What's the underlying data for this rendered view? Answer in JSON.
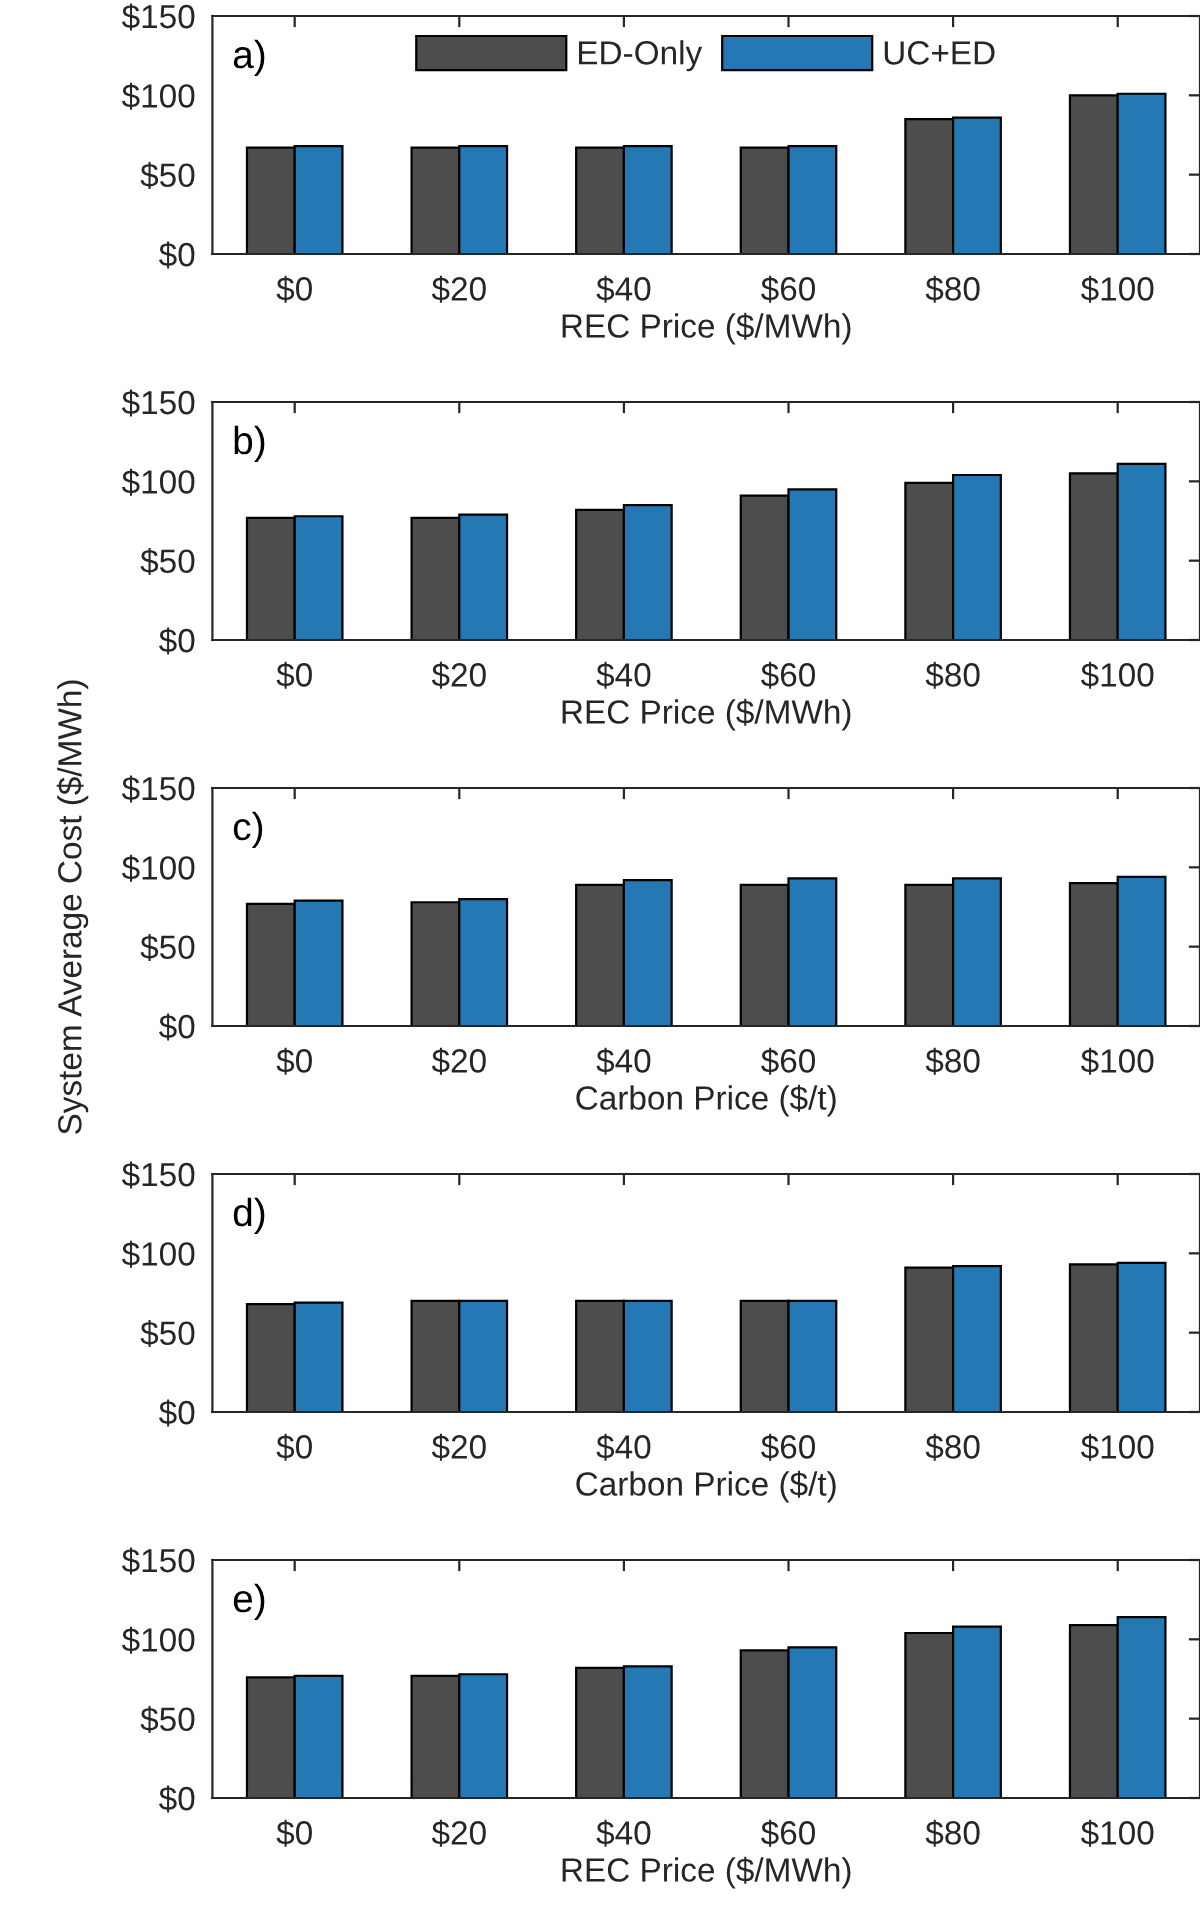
{
  "chart_data": [
    {
      "type": "bar",
      "categories": [
        "$0",
        "$20",
        "$40",
        "$60",
        "$80",
        "$100"
      ],
      "xlabel": "REC Price ($/MWh)",
      "annotations": [
        "a)"
      ],
      "ylim": [
        0,
        150
      ],
      "yticks": [
        {
          "value": 0,
          "label": "$0"
        },
        {
          "value": 50,
          "label": "$50"
        },
        {
          "value": 100,
          "label": "$100"
        },
        {
          "value": 150,
          "label": "$150"
        }
      ],
      "legend": "top",
      "grid": false,
      "series": [
        {
          "name": "ED-Only",
          "color": "#4d4d4d",
          "values": [
            67,
            67,
            67,
            67,
            85,
            100
          ]
        },
        {
          "name": "UC+ED",
          "color": "#2479b5",
          "values": [
            68,
            68,
            68,
            68,
            86,
            101
          ]
        }
      ]
    },
    {
      "type": "bar",
      "categories": [
        "$0",
        "$20",
        "$40",
        "$60",
        "$80",
        "$100"
      ],
      "xlabel": "REC Price ($/MWh)",
      "annotations": [
        "b)"
      ],
      "ylim": [
        0,
        150
      ],
      "yticks": [
        {
          "value": 0,
          "label": "$0"
        },
        {
          "value": 50,
          "label": "$50"
        },
        {
          "value": 100,
          "label": "$100"
        },
        {
          "value": 150,
          "label": "$150"
        }
      ],
      "grid": false,
      "series": [
        {
          "color": "#4d4d4d",
          "values": [
            77,
            77,
            82,
            91,
            99,
            105
          ]
        },
        {
          "color": "#2479b5",
          "values": [
            78,
            79,
            85,
            95,
            104,
            111
          ]
        }
      ]
    },
    {
      "type": "bar",
      "categories": [
        "$0",
        "$20",
        "$40",
        "$60",
        "$80",
        "$100"
      ],
      "xlabel": "Carbon Price ($/t)",
      "ylabel": "System Average Cost ($/MWh)",
      "annotations": [
        "c)"
      ],
      "ylim": [
        0,
        150
      ],
      "yticks": [
        {
          "value": 0,
          "label": "$0"
        },
        {
          "value": 50,
          "label": "$50"
        },
        {
          "value": 100,
          "label": "$100"
        },
        {
          "value": 150,
          "label": "$150"
        }
      ],
      "grid": false,
      "series": [
        {
          "color": "#4d4d4d",
          "values": [
            77,
            78,
            89,
            89,
            89,
            90
          ]
        },
        {
          "color": "#2479b5",
          "values": [
            79,
            80,
            92,
            93,
            93,
            94
          ]
        }
      ]
    },
    {
      "type": "bar",
      "categories": [
        "$0",
        "$20",
        "$40",
        "$60",
        "$80",
        "$100"
      ],
      "xlabel": "Carbon Price ($/t)",
      "annotations": [
        "d)"
      ],
      "ylim": [
        0,
        150
      ],
      "yticks": [
        {
          "value": 0,
          "label": "$0"
        },
        {
          "value": 50,
          "label": "$50"
        },
        {
          "value": 100,
          "label": "$100"
        },
        {
          "value": 150,
          "label": "$150"
        }
      ],
      "grid": false,
      "series": [
        {
          "color": "#4d4d4d",
          "values": [
            68,
            70,
            70,
            70,
            91,
            93
          ]
        },
        {
          "color": "#2479b5",
          "values": [
            69,
            70,
            70,
            70,
            92,
            94
          ]
        }
      ]
    },
    {
      "type": "bar",
      "categories": [
        "$0",
        "$20",
        "$40",
        "$60",
        "$80",
        "$100"
      ],
      "xlabel": "REC Price ($/MWh)",
      "annotations": [
        "e)"
      ],
      "ylim": [
        0,
        150
      ],
      "yticks": [
        {
          "value": 0,
          "label": "$0"
        },
        {
          "value": 50,
          "label": "$50"
        },
        {
          "value": 100,
          "label": "$100"
        },
        {
          "value": 150,
          "label": "$150"
        }
      ],
      "grid": false,
      "series": [
        {
          "color": "#4d4d4d",
          "values": [
            76,
            77,
            82,
            93,
            104,
            109
          ]
        },
        {
          "color": "#2479b5",
          "values": [
            77,
            78,
            83,
            95,
            108,
            114
          ]
        }
      ]
    }
  ]
}
